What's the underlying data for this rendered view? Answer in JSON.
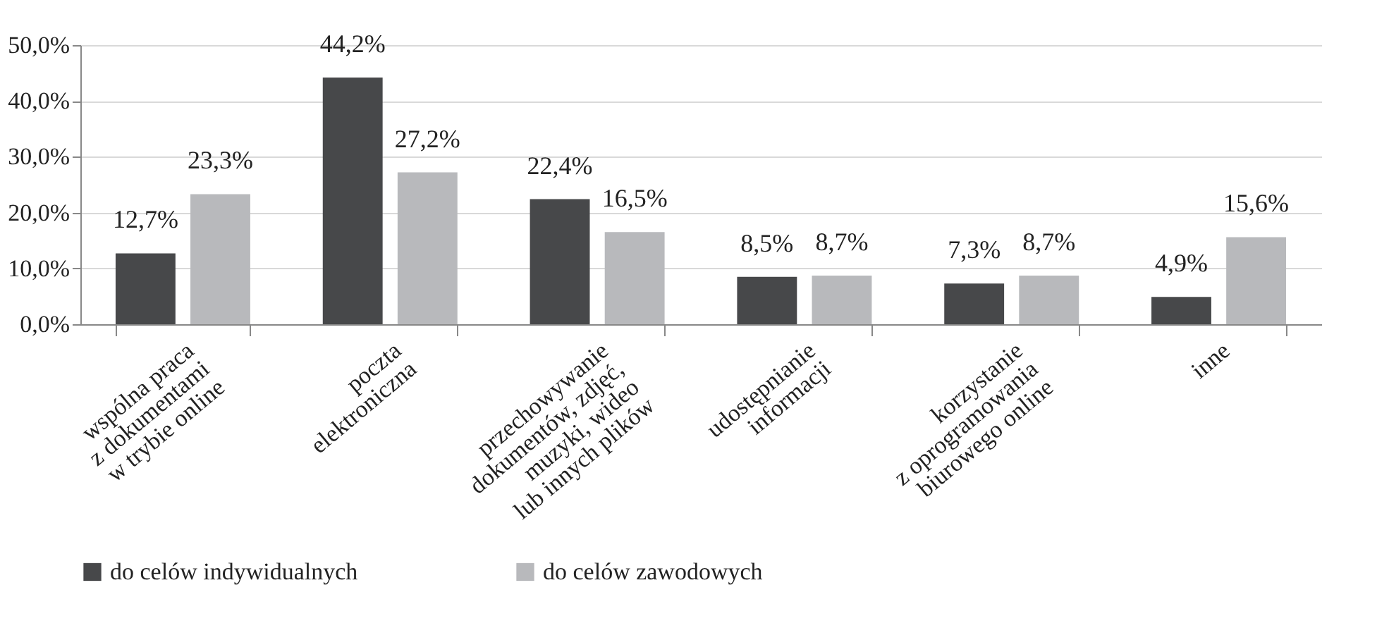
{
  "chart_data": {
    "type": "bar",
    "categories": [
      "wspólna praca\nz dokumentami\nw trybie online",
      "poczta\nelektroniczna",
      "przechowywanie\ndokumentów, zdjęć,\nmuzyki, wideo\nlub innych plików",
      "udostępnianie\ninformacji",
      "korzystanie\nz oprogramowania\nbiurowego online",
      "inne"
    ],
    "series": [
      {
        "name": "do celów indywidualnych",
        "color": "#47484a",
        "values": [
          12.7,
          44.2,
          22.4,
          8.5,
          7.3,
          4.9
        ],
        "value_labels": [
          "12,7%",
          "44,2%",
          "22,4%",
          "8,5%",
          "7,3%",
          "4,9%"
        ]
      },
      {
        "name": "do celów zawodowych",
        "color": "#b8b9bc",
        "values": [
          23.3,
          27.2,
          16.5,
          8.7,
          8.7,
          15.6
        ],
        "value_labels": [
          "23,3%",
          "27,2%",
          "16,5%",
          "8,7%",
          "8,7%",
          "15,6%"
        ]
      }
    ],
    "ylim": [
      0,
      50
    ],
    "yticks": [
      {
        "value": 0,
        "label": "0,0%"
      },
      {
        "value": 10,
        "label": "10,0%"
      },
      {
        "value": 20,
        "label": "20,0%"
      },
      {
        "value": 30,
        "label": "30,0%"
      },
      {
        "value": 40,
        "label": "40,0%"
      },
      {
        "value": 50,
        "label": "50,0%"
      }
    ],
    "grid": "y",
    "legend": "bottom"
  }
}
